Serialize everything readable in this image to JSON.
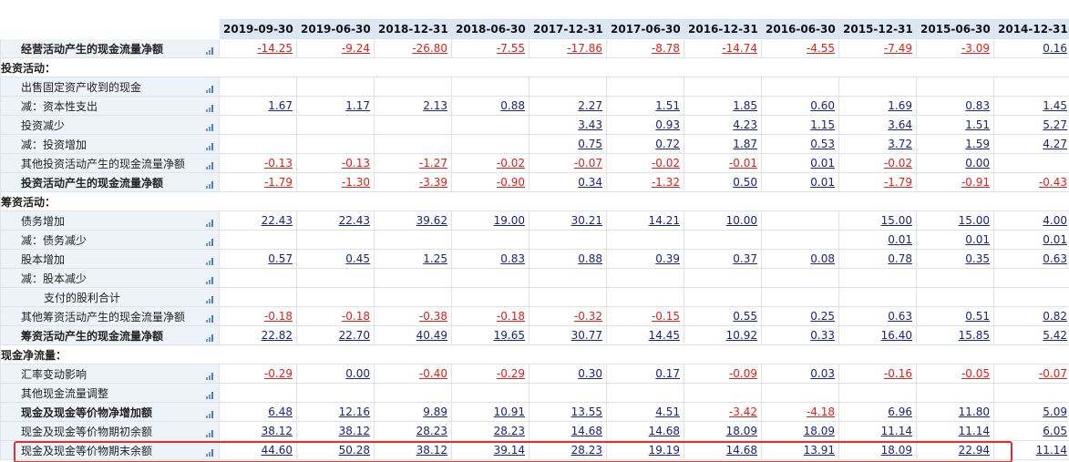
{
  "table": {
    "columns": [
      "2019-09-30",
      "2019-06-30",
      "2018-12-31",
      "2018-06-30",
      "2017-12-31",
      "2017-06-30",
      "2016-12-31",
      "2016-06-30",
      "2015-12-31",
      "2015-06-30",
      "2014-12-31"
    ],
    "rows": [
      {
        "label": "经营活动产生的现金流量净额",
        "values": [
          "-14.25",
          "-9.24",
          "-26.80",
          "-7.55",
          "-17.86",
          "-8.78",
          "-14.74",
          "-4.55",
          "-7.49",
          "-3.09",
          "0.16"
        ]
      },
      {
        "label": "投资活动："
      },
      {
        "label": "出售固定资产收到的现金",
        "values": [
          null,
          null,
          null,
          null,
          null,
          null,
          null,
          null,
          null,
          null,
          null
        ]
      },
      {
        "label": "减：资本性支出",
        "values": [
          "1.67",
          "1.17",
          "2.13",
          "0.88",
          "2.27",
          "1.51",
          "1.85",
          "0.60",
          "1.69",
          "0.83",
          "1.45"
        ]
      },
      {
        "label": "投资减少",
        "values": [
          null,
          null,
          null,
          null,
          "3.43",
          "0.93",
          "4.23",
          "1.15",
          "3.64",
          "1.51",
          "5.27"
        ]
      },
      {
        "label": "减：投资增加",
        "values": [
          null,
          null,
          null,
          null,
          "0.75",
          "0.72",
          "1.87",
          "0.53",
          "3.72",
          "1.59",
          "4.27"
        ]
      },
      {
        "label": "其他投资活动产生的现金流量净额",
        "values": [
          "-0.13",
          "-0.13",
          "-1.27",
          "-0.02",
          "-0.07",
          "-0.02",
          "-0.01",
          "0.01",
          "-0.02",
          "0.00",
          null
        ]
      },
      {
        "label": "投资活动产生的现金流量净额",
        "values": [
          "-1.79",
          "-1.30",
          "-3.39",
          "-0.90",
          "0.34",
          "-1.32",
          "0.50",
          "0.01",
          "-1.79",
          "-0.91",
          "-0.43"
        ]
      },
      {
        "label": "筹资活动："
      },
      {
        "label": "债务增加",
        "values": [
          "22.43",
          "22.43",
          "39.62",
          "19.00",
          "30.21",
          "14.21",
          "10.00",
          null,
          "15.00",
          "15.00",
          "4.00"
        ]
      },
      {
        "label": "减：债务减少",
        "values": [
          null,
          null,
          null,
          null,
          null,
          null,
          null,
          null,
          "0.01",
          "0.01",
          "0.01"
        ]
      },
      {
        "label": "股本增加",
        "values": [
          "0.57",
          "0.45",
          "1.25",
          "0.83",
          "0.88",
          "0.39",
          "0.37",
          "0.08",
          "0.78",
          "0.35",
          "0.63"
        ]
      },
      {
        "label": "减：股本减少",
        "values": [
          null,
          null,
          null,
          null,
          null,
          null,
          null,
          null,
          null,
          null,
          null
        ]
      },
      {
        "label": "支付的股利合计",
        "values": [
          null,
          null,
          null,
          null,
          null,
          null,
          null,
          null,
          null,
          null,
          null
        ]
      },
      {
        "label": "其他筹资活动产生的现金流量净额",
        "values": [
          "-0.18",
          "-0.18",
          "-0.38",
          "-0.18",
          "-0.32",
          "-0.15",
          "0.55",
          "0.25",
          "0.63",
          "0.51",
          "0.82"
        ]
      },
      {
        "label": "筹资活动产生的现金流量净额",
        "values": [
          "22.82",
          "22.70",
          "40.49",
          "19.65",
          "30.77",
          "14.45",
          "10.92",
          "0.33",
          "16.40",
          "15.85",
          "5.42"
        ]
      },
      {
        "label": "现金净流量："
      },
      {
        "label": "汇率变动影响",
        "values": [
          "-0.29",
          "0.00",
          "-0.40",
          "-0.29",
          "0.30",
          "0.17",
          "-0.09",
          "0.03",
          "-0.16",
          "-0.05",
          "-0.07"
        ]
      },
      {
        "label": "其他现金流量调整",
        "values": [
          null,
          null,
          null,
          null,
          null,
          null,
          null,
          null,
          null,
          null,
          null
        ]
      },
      {
        "label": "现金及现金等价物净增加额",
        "values": [
          "6.48",
          "12.16",
          "9.89",
          "10.91",
          "13.55",
          "4.51",
          "-3.42",
          "-4.18",
          "6.96",
          "11.80",
          "5.09"
        ]
      },
      {
        "label": "现金及现金等价物期初余额",
        "values": [
          "38.12",
          "38.12",
          "28.23",
          "28.23",
          "14.68",
          "14.68",
          "18.09",
          "18.09",
          "11.14",
          "11.14",
          "6.05"
        ]
      },
      {
        "label": "现金及现金等价物期末余额",
        "values": [
          "44.60",
          "50.28",
          "38.12",
          "39.14",
          "28.23",
          "19.19",
          "14.68",
          "13.91",
          "18.09",
          "22.94",
          "11.14"
        ]
      }
    ]
  }
}
